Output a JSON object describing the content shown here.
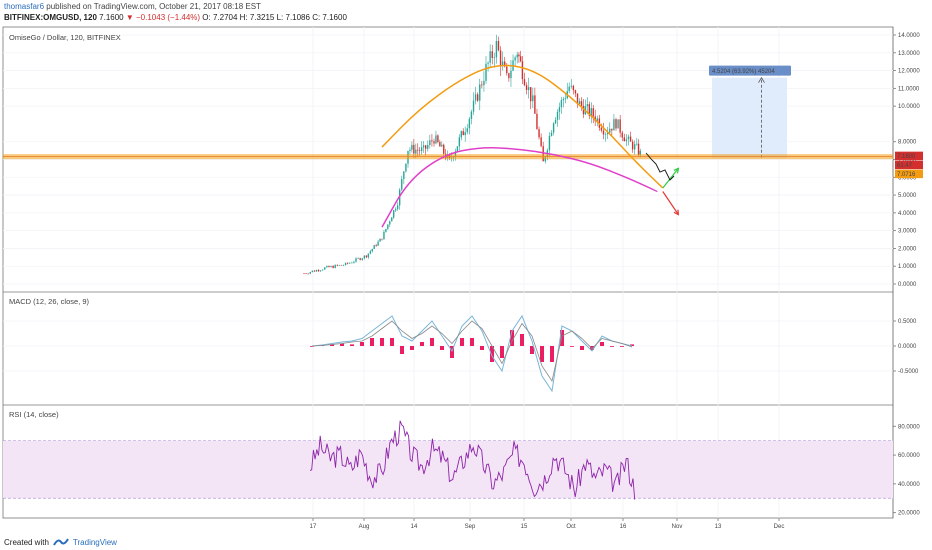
{
  "header": {
    "author": "thomasfar6",
    "published": "published on TradingView.com, October 21, 2017 08:18 EST",
    "ticker": "BITFINEX:OMGUSD, 120",
    "last": "7.1600",
    "change": "−0.1043 (−1.44%)",
    "open": "O: 7.2704",
    "high": "H: 7.3215",
    "low": "L: 7.1086",
    "close": "C: 7.1600"
  },
  "footer": {
    "created_with": "Created with",
    "brand": "TradingView"
  },
  "colors": {
    "up": "#26a69a",
    "down": "#d32f2f",
    "orange": "#f39c12",
    "magenta": "#e040c8",
    "macd": "#79b5d9",
    "signal": "#888888",
    "hist": "#e91e63",
    "rsi": "#8e24aa",
    "rsi_band": "#f3e5f5",
    "green_arrow": "#2ecc40",
    "red_arrow": "#e53935"
  },
  "chart_data": [
    {
      "type": "candlestick",
      "title": "OmiseGo / Dollar, 120, BITFINEX",
      "x_tick_labels": [
        "17",
        "Aug",
        "14",
        "Sep",
        "15",
        "Oct",
        "16",
        "Nov",
        "13",
        "Dec"
      ],
      "y_tick_labels": [
        "0.0000",
        "1.0000",
        "2.0000",
        "3.0000",
        "4.0000",
        "5.0000",
        "6.0000",
        "7.0000",
        "8.0000",
        "10.0000",
        "11.0000",
        "12.0000",
        "13.0000",
        "14.0000"
      ],
      "ylim": [
        -0.3,
        14.6
      ],
      "price_path": [
        [
          0,
          0.6
        ],
        [
          4,
          0.9
        ],
        [
          8,
          1.1
        ],
        [
          12,
          1.6
        ],
        [
          15,
          2.6
        ],
        [
          18,
          4.6
        ],
        [
          20,
          7.6
        ],
        [
          23,
          7.5
        ],
        [
          25,
          8.2
        ],
        [
          28,
          6.9
        ],
        [
          31,
          8.8
        ],
        [
          33,
          10.3
        ],
        [
          35,
          12.1
        ],
        [
          37,
          13.4
        ],
        [
          39,
          11.5
        ],
        [
          41,
          13.1
        ],
        [
          42,
          12.0
        ],
        [
          44,
          10.2
        ],
        [
          46,
          6.8
        ],
        [
          48,
          9.3
        ],
        [
          51,
          11.1
        ],
        [
          53,
          10.1
        ],
        [
          56,
          9.4
        ],
        [
          58,
          8.6
        ],
        [
          60,
          9.1
        ],
        [
          62,
          8.1
        ],
        [
          64,
          7.6
        ],
        [
          65,
          7.16
        ]
      ],
      "horizontal_levels": [
        7.16,
        7.0
      ],
      "last_price": "7.1600",
      "price_labels": [
        "7.1600",
        "61.47",
        "7.0716"
      ],
      "projection_box": {
        "label": "4.5204 (63.92%) 45204",
        "from": 7.1,
        "to": 11.6
      },
      "orange_arc": [
        [
          15,
          7.7
        ],
        [
          22,
          9.8
        ],
        [
          30,
          11.5
        ],
        [
          37,
          12.4
        ],
        [
          44,
          12.1
        ],
        [
          51,
          10.6
        ],
        [
          58,
          8.7
        ],
        [
          64,
          6.8
        ],
        [
          69,
          5.4
        ]
      ],
      "magenta_arc": [
        [
          15,
          3.2
        ],
        [
          20,
          5.8
        ],
        [
          27,
          7.3
        ],
        [
          34,
          7.7
        ],
        [
          41,
          7.6
        ],
        [
          48,
          7.3
        ],
        [
          55,
          6.8
        ],
        [
          62,
          6.0
        ],
        [
          68,
          5.2
        ]
      ],
      "arrows": {
        "green": [
          [
            69,
            5.4
          ],
          [
            72,
            6.5
          ]
        ],
        "red": [
          [
            69,
            5.2
          ],
          [
            72,
            3.9
          ]
        ]
      }
    },
    {
      "type": "line",
      "title": "MACD (12, 26, close, 9)",
      "y_tick_labels": [
        "0.5000",
        "0.0000",
        "-0.5000"
      ],
      "ylim": [
        -1.1,
        1.1
      ],
      "x": [
        0,
        2,
        4,
        6,
        8,
        10,
        12,
        14,
        16,
        18,
        20,
        22,
        24,
        26,
        28,
        30,
        32,
        34,
        36,
        38,
        40,
        42,
        44,
        46,
        48,
        50,
        52,
        54,
        56,
        58,
        60,
        62,
        64
      ],
      "macd": [
        0,
        0.02,
        0.05,
        0.08,
        0.1,
        0.15,
        0.3,
        0.45,
        0.6,
        0.2,
        0.1,
        0.3,
        0.5,
        0.2,
        -0.1,
        0.4,
        0.6,
        0.3,
        -0.2,
        -0.5,
        0.3,
        0.6,
        0.1,
        -0.6,
        -0.9,
        0.4,
        0.3,
        0.1,
        -0.1,
        0.2,
        0.1,
        0.05,
        0
      ],
      "signal": [
        0,
        0.01,
        0.03,
        0.05,
        0.08,
        0.1,
        0.2,
        0.35,
        0.5,
        0.3,
        0.15,
        0.25,
        0.4,
        0.25,
        0.05,
        0.3,
        0.5,
        0.35,
        0,
        -0.35,
        0.1,
        0.45,
        0.2,
        -0.4,
        -0.7,
        0.2,
        0.3,
        0.15,
        -0.05,
        0.15,
        0.1,
        0.05,
        -0.02
      ]
    },
    {
      "type": "line",
      "title": "RSI (14, close)",
      "y_tick_labels": [
        "80.0000",
        "60.0000",
        "40.0000",
        "20.0000"
      ],
      "ylim": [
        17,
        92
      ],
      "band": [
        30,
        70
      ],
      "x": [
        0,
        2,
        4,
        6,
        8,
        10,
        12,
        14,
        16,
        18,
        20,
        22,
        24,
        26,
        28,
        30,
        32,
        34,
        36,
        38,
        40,
        42,
        44,
        46,
        48,
        50,
        52,
        54,
        56,
        58,
        60,
        62,
        64
      ],
      "rsi": [
        52,
        66,
        58,
        60,
        50,
        62,
        44,
        48,
        70,
        78,
        60,
        52,
        64,
        58,
        44,
        56,
        68,
        54,
        40,
        48,
        62,
        56,
        38,
        44,
        60,
        50,
        36,
        55,
        44,
        50,
        38,
        56,
        32
      ]
    }
  ]
}
